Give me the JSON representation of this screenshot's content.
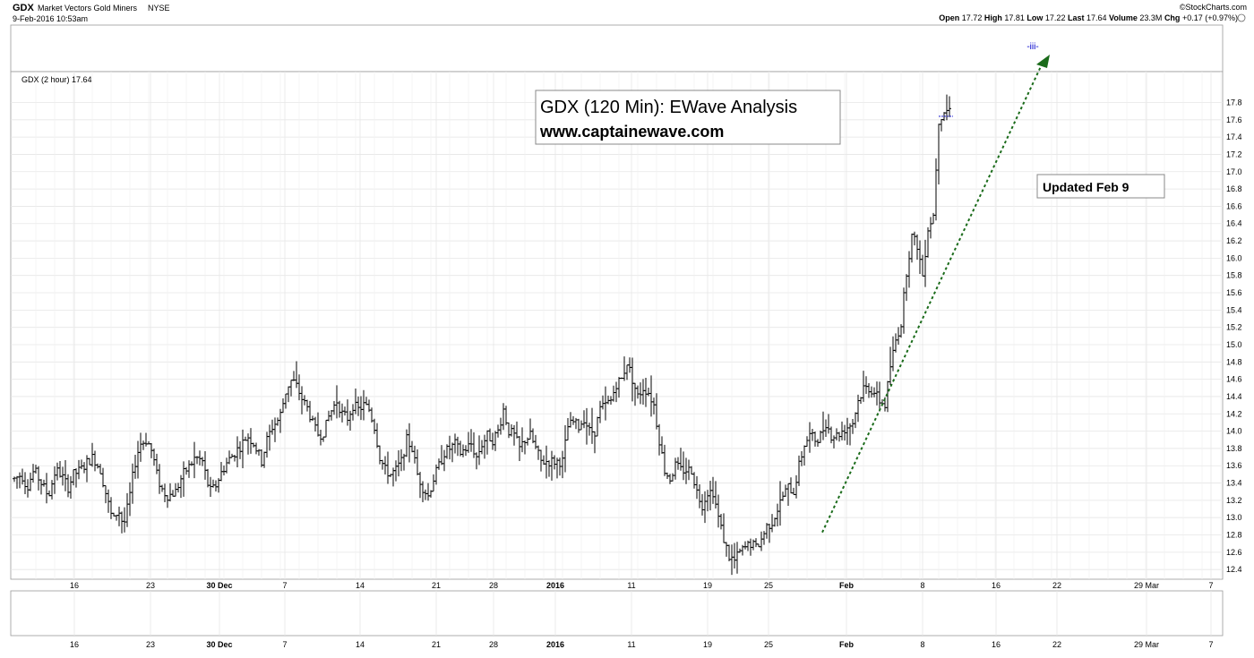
{
  "header": {
    "symbol": "GDX",
    "name": "Market Vectors Gold Miners",
    "exchange": "NYSE",
    "timestamp": "9-Feb-2016 10:53am",
    "brand": "©StockCharts.com",
    "stats": {
      "open_label": "Open",
      "open": "17.72",
      "high_label": "High",
      "high": "17.81",
      "low_label": "Low",
      "low": "17.22",
      "last_label": "Last",
      "last": "17.64",
      "volume_label": "Volume",
      "volume": "23.3M",
      "chg_label": "Chg",
      "chg": "+0.17 (+0.97%)"
    }
  },
  "legend_label": "GDX (2 hour) 17.64",
  "annotations": {
    "title_line1": "GDX (120 Min): EWave Analysis",
    "title_line2": "www.captainewave.com",
    "updated": "Updated Feb 9",
    "wave_label": "-iii-"
  },
  "colors": {
    "bar": "#000000",
    "last_bar": "#2e9d2e",
    "arrow": "#1a6b1a",
    "wave_label": "#0000cc",
    "grid": "#e6e6e6",
    "last_line": "#0000cc"
  },
  "chart_data": {
    "type": "ohlc",
    "symbol": "GDX",
    "interval": "2 hour",
    "ylim": [
      12.35,
      17.95
    ],
    "y_ticks": [
      12.4,
      12.6,
      12.8,
      13.0,
      13.2,
      13.4,
      13.6,
      13.8,
      14.0,
      14.2,
      14.4,
      14.6,
      14.8,
      15.0,
      15.2,
      15.4,
      15.6,
      15.8,
      16.0,
      16.2,
      16.4,
      16.6,
      16.8,
      17.0,
      17.2,
      17.4,
      17.6,
      17.8
    ],
    "x_tick_labels": [
      "16",
      "23",
      "30 Dec",
      "7",
      "14",
      "21",
      "28",
      "2016",
      "11",
      "19",
      "25",
      "Feb",
      "8",
      "16",
      "22",
      "29 Mar",
      "7"
    ],
    "bold_tick_labels": [
      "30 Dec",
      "2016",
      "Feb"
    ],
    "last_price": 17.64,
    "trend_arrow": {
      "from_price": 12.85,
      "to_price": 17.75
    },
    "price_path": [
      [
        0,
        13.45
      ],
      [
        8,
        13.5
      ],
      [
        14,
        13.35
      ],
      [
        22,
        13.55
      ],
      [
        30,
        13.4
      ],
      [
        38,
        13.25
      ],
      [
        46,
        13.55
      ],
      [
        52,
        13.5
      ],
      [
        60,
        13.35
      ],
      [
        66,
        13.5
      ],
      [
        74,
        13.55
      ],
      [
        82,
        13.65
      ],
      [
        88,
        13.7
      ],
      [
        96,
        13.55
      ],
      [
        104,
        13.2
      ],
      [
        110,
        12.95
      ],
      [
        116,
        13.1
      ],
      [
        122,
        12.9
      ],
      [
        128,
        13.2
      ],
      [
        134,
        13.6
      ],
      [
        140,
        13.85
      ],
      [
        148,
        13.9
      ],
      [
        154,
        13.75
      ],
      [
        160,
        13.45
      ],
      [
        166,
        13.3
      ],
      [
        172,
        13.25
      ],
      [
        180,
        13.3
      ],
      [
        188,
        13.5
      ],
      [
        196,
        13.6
      ],
      [
        202,
        13.7
      ],
      [
        210,
        13.65
      ],
      [
        218,
        13.3
      ],
      [
        224,
        13.35
      ],
      [
        230,
        13.5
      ],
      [
        238,
        13.65
      ],
      [
        246,
        13.75
      ],
      [
        254,
        13.85
      ],
      [
        260,
        13.95
      ],
      [
        268,
        13.85
      ],
      [
        276,
        13.65
      ],
      [
        282,
        13.9
      ],
      [
        288,
        14.05
      ],
      [
        296,
        14.15
      ],
      [
        304,
        14.5
      ],
      [
        310,
        14.6
      ],
      [
        316,
        14.5
      ],
      [
        322,
        14.35
      ],
      [
        328,
        14.25
      ],
      [
        334,
        14.05
      ],
      [
        340,
        13.95
      ],
      [
        346,
        14.0
      ],
      [
        352,
        14.2
      ],
      [
        360,
        14.35
      ],
      [
        366,
        14.2
      ],
      [
        372,
        14.15
      ],
      [
        378,
        14.3
      ],
      [
        384,
        14.25
      ],
      [
        390,
        14.3
      ],
      [
        396,
        14.25
      ],
      [
        402,
        14.05
      ],
      [
        408,
        13.7
      ],
      [
        414,
        13.55
      ],
      [
        420,
        13.5
      ],
      [
        426,
        13.55
      ],
      [
        432,
        13.65
      ],
      [
        438,
        13.9
      ],
      [
        444,
        13.8
      ],
      [
        450,
        13.5
      ],
      [
        456,
        13.35
      ],
      [
        462,
        13.25
      ],
      [
        468,
        13.45
      ],
      [
        474,
        13.6
      ],
      [
        480,
        13.75
      ],
      [
        486,
        13.8
      ],
      [
        492,
        13.85
      ],
      [
        498,
        13.75
      ],
      [
        504,
        13.8
      ],
      [
        510,
        13.85
      ],
      [
        516,
        13.7
      ],
      [
        522,
        13.85
      ],
      [
        528,
        13.95
      ],
      [
        534,
        13.9
      ],
      [
        540,
        14.0
      ],
      [
        546,
        14.25
      ],
      [
        552,
        14.0
      ],
      [
        558,
        13.95
      ],
      [
        564,
        13.8
      ],
      [
        570,
        13.9
      ],
      [
        576,
        13.95
      ],
      [
        582,
        13.8
      ],
      [
        588,
        13.65
      ],
      [
        594,
        13.65
      ],
      [
        600,
        13.65
      ],
      [
        606,
        13.65
      ],
      [
        612,
        13.65
      ],
      [
        618,
        14.05
      ],
      [
        624,
        14.1
      ],
      [
        630,
        14.05
      ],
      [
        636,
        14.15
      ],
      [
        642,
        14.0
      ],
      [
        648,
        14.0
      ],
      [
        654,
        14.25
      ],
      [
        660,
        14.3
      ],
      [
        666,
        14.35
      ],
      [
        672,
        14.55
      ],
      [
        678,
        14.6
      ],
      [
        684,
        14.8
      ],
      [
        690,
        14.6
      ],
      [
        696,
        14.4
      ],
      [
        702,
        14.5
      ],
      [
        708,
        14.45
      ],
      [
        714,
        14.3
      ],
      [
        720,
        13.9
      ],
      [
        726,
        13.55
      ],
      [
        732,
        13.45
      ],
      [
        738,
        13.6
      ],
      [
        744,
        13.55
      ],
      [
        750,
        13.55
      ],
      [
        756,
        13.55
      ],
      [
        762,
        13.3
      ],
      [
        768,
        13.15
      ],
      [
        774,
        13.3
      ],
      [
        780,
        13.3
      ],
      [
        786,
        13.0
      ],
      [
        792,
        12.75
      ],
      [
        798,
        12.55
      ],
      [
        804,
        12.5
      ],
      [
        810,
        12.6
      ],
      [
        816,
        12.65
      ],
      [
        822,
        12.7
      ],
      [
        828,
        12.65
      ],
      [
        834,
        12.75
      ],
      [
        840,
        12.9
      ],
      [
        846,
        12.95
      ],
      [
        852,
        13.1
      ],
      [
        858,
        13.25
      ],
      [
        864,
        13.35
      ],
      [
        870,
        13.3
      ],
      [
        876,
        13.6
      ],
      [
        882,
        13.85
      ],
      [
        888,
        13.95
      ],
      [
        894,
        13.9
      ],
      [
        900,
        13.95
      ],
      [
        906,
        14.1
      ],
      [
        912,
        13.95
      ],
      [
        918,
        13.95
      ],
      [
        924,
        14.0
      ],
      [
        930,
        14.05
      ],
      [
        936,
        14.1
      ],
      [
        942,
        14.35
      ],
      [
        948,
        14.5
      ],
      [
        954,
        14.5
      ],
      [
        960,
        14.45
      ],
      [
        966,
        14.35
      ],
      [
        972,
        14.3
      ],
      [
        978,
        14.75
      ],
      [
        984,
        15.05
      ],
      [
        990,
        15.25
      ],
      [
        996,
        15.85
      ],
      [
        1002,
        16.25
      ],
      [
        1008,
        16.15
      ],
      [
        1014,
        15.8
      ],
      [
        1020,
        16.35
      ],
      [
        1026,
        16.5
      ],
      [
        1032,
        17.6
      ],
      [
        1038,
        17.7
      ],
      [
        1044,
        17.72
      ],
      [
        1050,
        17.64
      ]
    ]
  }
}
